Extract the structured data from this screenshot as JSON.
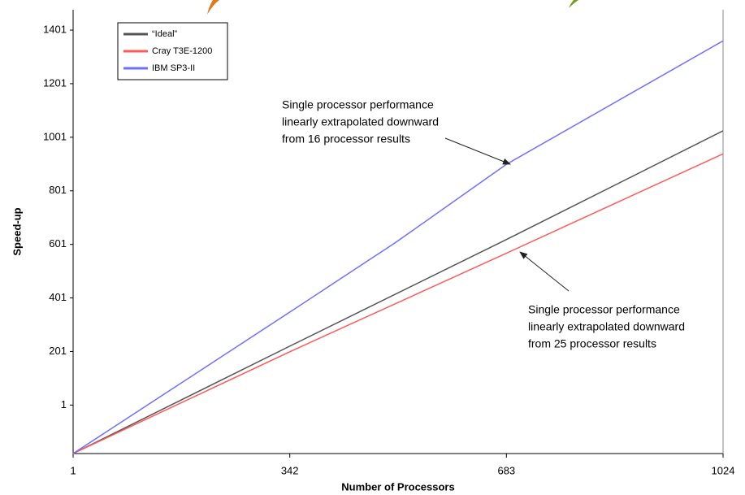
{
  "chart_data": {
    "type": "line",
    "xlabel": "Number of Processors",
    "ylabel": "Speed-up",
    "xlim": [
      1,
      1024
    ],
    "xticks": [
      1,
      342,
      683,
      1024
    ],
    "ylim": [
      -180,
      1477
    ],
    "yticks": [
      1,
      201,
      401,
      601,
      801,
      1001,
      1201,
      1401
    ],
    "legend": "upper left",
    "series": [
      {
        "name": "“Ideal”",
        "color": "#555555",
        "x": [
          1,
          342,
          683,
          1024
        ],
        "values": [
          -180,
          221,
          619,
          1025
        ]
      },
      {
        "name": "Cray T3E-1200",
        "color": "#ff5a5a",
        "x": [
          1,
          342,
          683,
          1024
        ],
        "values": [
          -180,
          200,
          568,
          939
        ]
      },
      {
        "name": "IBM SP3-II",
        "color": "#6f6fff",
        "x": [
          1,
          342,
          508,
          683,
          1024
        ],
        "values": [
          -180,
          348,
          607,
          900,
          1361
        ]
      }
    ],
    "annotations": [
      {
        "lines": [
          "Single processor performance",
          "linearly extrapolated downward",
          "from 16 processor results"
        ]
      },
      {
        "lines": [
          "Single processor performance",
          "linearly extrapolated downward",
          "from 25 processor results"
        ]
      }
    ]
  }
}
